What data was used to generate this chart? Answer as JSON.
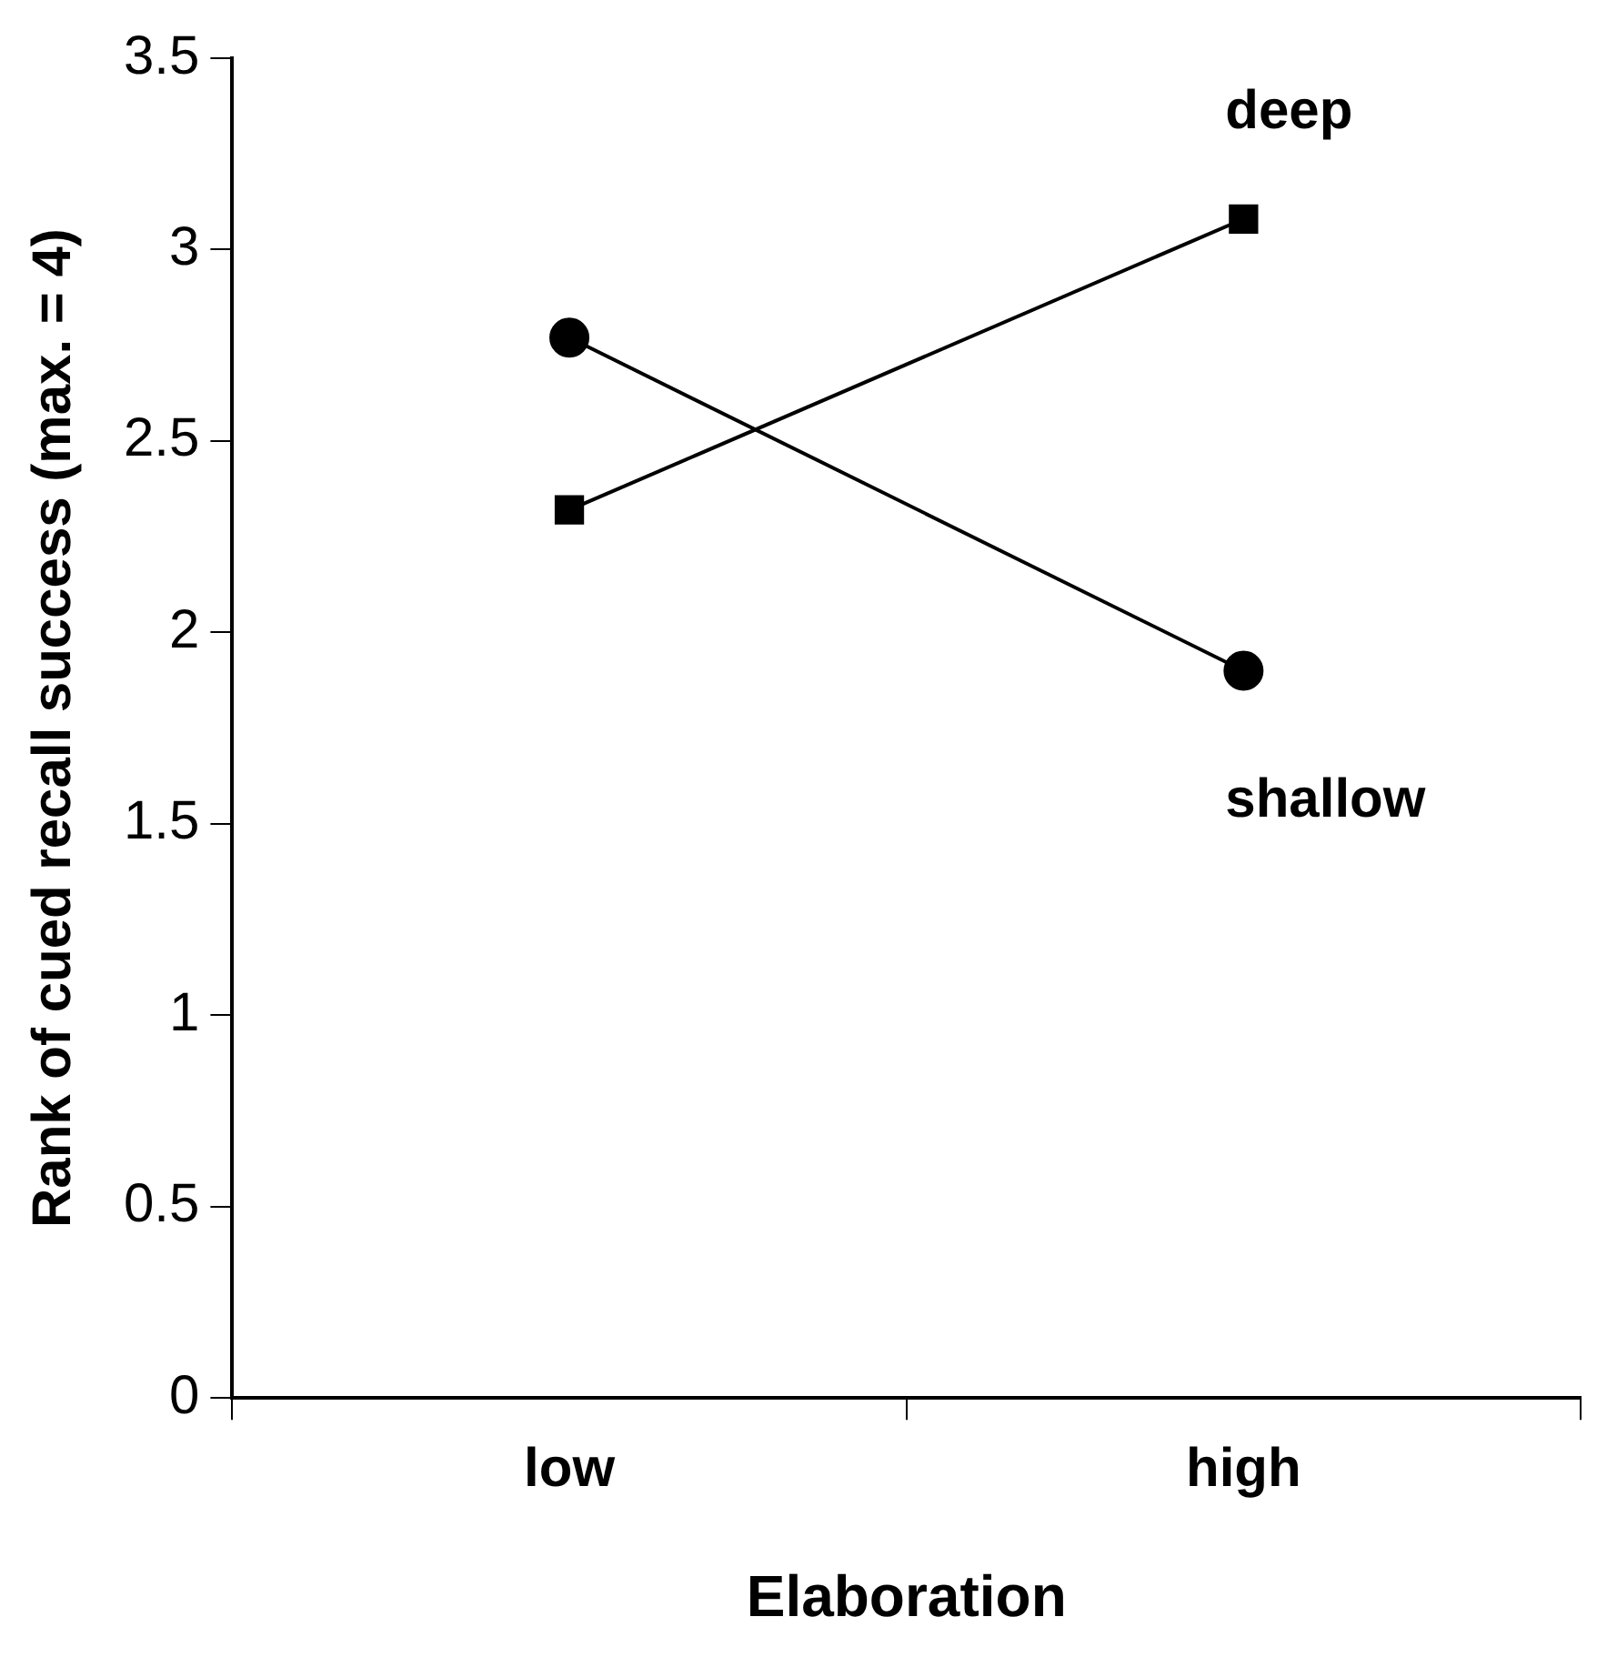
{
  "chart_data": {
    "type": "line",
    "xlabel": "Elaboration",
    "ylabel": "Rank of cued recall success (max. = 4)",
    "categories": [
      "low",
      "high"
    ],
    "series": [
      {
        "name": "deep",
        "color": "#000000",
        "marker": "square",
        "values": [
          2.32,
          3.08
        ]
      },
      {
        "name": "shallow",
        "color": "#000000",
        "marker": "circle",
        "values": [
          2.77,
          1.9
        ]
      }
    ],
    "ylim": [
      0,
      3.5
    ],
    "yticks": [
      0,
      0.5,
      1,
      1.5,
      2,
      2.5,
      3,
      3.5
    ],
    "grid": false,
    "legend": false,
    "line_style": "solid"
  }
}
